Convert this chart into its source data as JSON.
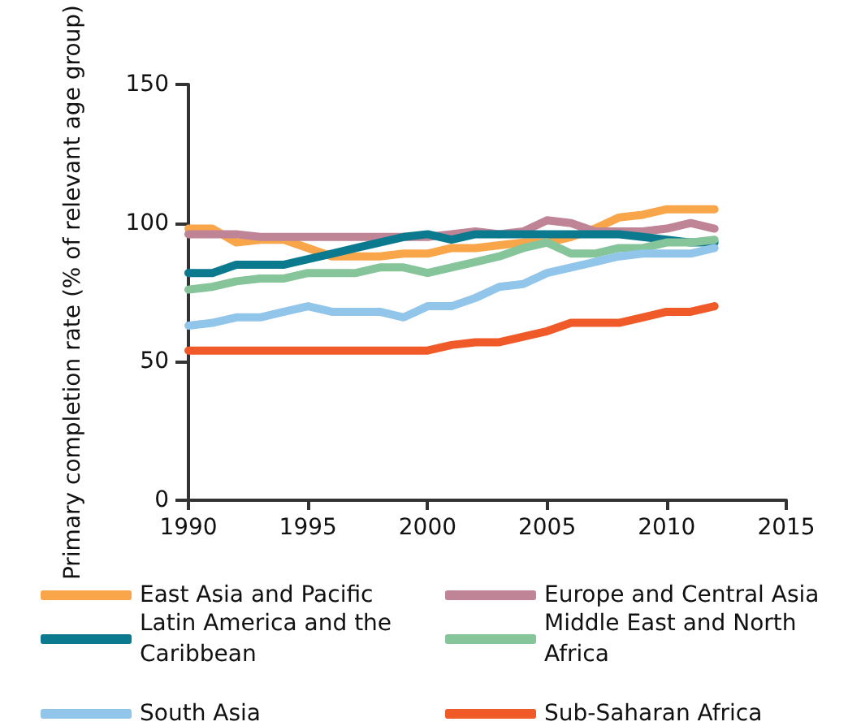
{
  "chart_data": {
    "type": "line",
    "ylabel": "Primary completion rate (% of relevant age group)",
    "x": [
      1990,
      1991,
      1992,
      1993,
      1994,
      1995,
      1996,
      1997,
      1998,
      1999,
      2000,
      2001,
      2002,
      2003,
      2004,
      2005,
      2006,
      2007,
      2008,
      2009,
      2010,
      2011,
      2012
    ],
    "series": [
      {
        "name": "East Asia and Pacific",
        "color": "#f9a54a",
        "values": [
          98,
          98,
          93,
          94,
          94,
          91,
          88,
          88,
          88,
          89,
          89,
          91,
          91,
          92,
          93,
          93,
          95,
          98,
          102,
          103,
          105,
          105,
          105
        ]
      },
      {
        "name": "Europe and Central Asia",
        "color": "#c08497",
        "values": [
          96,
          96,
          96,
          95,
          95,
          95,
          95,
          95,
          95,
          95,
          95,
          96,
          97,
          96,
          97,
          101,
          100,
          97,
          97,
          97,
          98,
          100,
          98
        ]
      },
      {
        "name": "Latin America and the Caribbean",
        "color": "#0b7a8f",
        "values": [
          82,
          82,
          85,
          85,
          85,
          87,
          89,
          91,
          93,
          95,
          96,
          94,
          96,
          96,
          96,
          96,
          96,
          96,
          96,
          95,
          94,
          93,
          93
        ]
      },
      {
        "name": "Middle East and North Africa",
        "color": "#86c49a",
        "values": [
          76,
          77,
          79,
          80,
          80,
          82,
          82,
          82,
          84,
          84,
          82,
          84,
          86,
          88,
          91,
          93,
          89,
          89,
          91,
          91,
          93,
          93,
          94
        ]
      },
      {
        "name": "South Asia",
        "color": "#92c5ea",
        "values": [
          63,
          64,
          66,
          66,
          68,
          70,
          68,
          68,
          68,
          66,
          70,
          70,
          73,
          77,
          78,
          82,
          84,
          86,
          88,
          89,
          89,
          89,
          91
        ]
      },
      {
        "name": "Sub-Saharan Africa",
        "color": "#f05a28",
        "values": [
          54,
          54,
          54,
          54,
          54,
          54,
          54,
          54,
          54,
          54,
          54,
          56,
          57,
          57,
          59,
          61,
          64,
          64,
          64,
          66,
          68,
          68,
          70
        ]
      }
    ],
    "xlim": [
      1990,
      2015
    ],
    "xticks": [
      1990,
      1995,
      2000,
      2005,
      2010,
      2015
    ],
    "ylim": [
      0,
      150
    ],
    "yticks": [
      0,
      50,
      100,
      150
    ],
    "grid": false,
    "legend": "bottom",
    "marker": "none",
    "line_style": "solid"
  }
}
